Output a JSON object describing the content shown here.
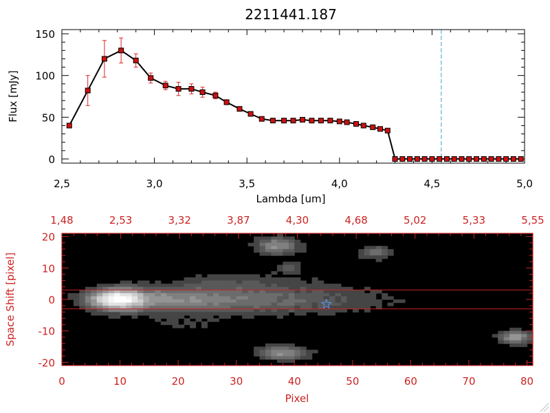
{
  "chart_data": [
    {
      "type": "line",
      "title": "2211441.187",
      "xlabel": "Lambda [um]",
      "ylabel": "Flux [mJy]",
      "xlim": [
        2.5,
        5.0
      ],
      "ylim": [
        -5,
        155
      ],
      "xticks": [
        "2.5",
        "3.0",
        "3.5",
        "4.0",
        "4.5",
        "5.0"
      ],
      "yticks": [
        "0",
        "50",
        "100",
        "150"
      ],
      "reference_line_x": 4.55,
      "x": [
        2.54,
        2.64,
        2.73,
        2.82,
        2.9,
        2.98,
        3.06,
        3.13,
        3.2,
        3.26,
        3.33,
        3.39,
        3.46,
        3.52,
        3.58,
        3.64,
        3.7,
        3.75,
        3.8,
        3.85,
        3.9,
        3.95,
        4.0,
        4.04,
        4.09,
        4.13,
        4.18,
        4.22,
        4.26,
        4.3,
        4.34,
        4.38,
        4.42,
        4.46,
        4.5,
        4.54,
        4.58,
        4.62,
        4.66,
        4.7,
        4.74,
        4.78,
        4.82,
        4.86,
        4.9,
        4.94,
        4.98
      ],
      "values": [
        40,
        82,
        120,
        130,
        118,
        97,
        88,
        84,
        84,
        80,
        76,
        68,
        60,
        54,
        48,
        46,
        46,
        46,
        47,
        46,
        46,
        46,
        45,
        44,
        42,
        40,
        38,
        36,
        34,
        0,
        0,
        0,
        0,
        0,
        0,
        0,
        0,
        0,
        0,
        0,
        0,
        0,
        0,
        0,
        0,
        0,
        0
      ],
      "errors": [
        2,
        18,
        22,
        15,
        8,
        6,
        5,
        8,
        6,
        6,
        4,
        3,
        2,
        2,
        2,
        2,
        2,
        2,
        2,
        2,
        2,
        2,
        2,
        2,
        2,
        2,
        2,
        2,
        2,
        0,
        0,
        0,
        0,
        0,
        0,
        0,
        0,
        0,
        0,
        0,
        0,
        0,
        0,
        0,
        0,
        0,
        0
      ]
    },
    {
      "type": "heatmap",
      "xlabel": "Pixel",
      "ylabel": "Space Shift [pixel]",
      "xlim": [
        0,
        81
      ],
      "ylim": [
        -21,
        21
      ],
      "xticks": [
        "0",
        "10",
        "20",
        "30",
        "40",
        "50",
        "60",
        "70",
        "80"
      ],
      "yticks": [
        "-20",
        "-10",
        "0",
        "10",
        "20"
      ],
      "top_axis_ticks": [
        "1.48",
        "2.53",
        "3.32",
        "3.87",
        "4.30",
        "4.68",
        "5.02",
        "5.33",
        "5.55"
      ],
      "extraction_band": [
        -3,
        3
      ],
      "marker": {
        "x": 45.5,
        "y": -1.5,
        "symbol": "star"
      },
      "sources": [
        {
          "x": 10,
          "y": 0,
          "sx": 4,
          "sy": 2.5,
          "amp": 1.0,
          "tail_to": 66
        },
        {
          "x": 37,
          "y": 17,
          "sx": 2.5,
          "sy": 2,
          "amp": 0.45
        },
        {
          "x": 54,
          "y": 15,
          "sx": 2,
          "sy": 1.5,
          "amp": 0.3
        },
        {
          "x": 39,
          "y": 10,
          "sx": 1.5,
          "sy": 1.2,
          "amp": 0.22
        },
        {
          "x": 38,
          "y": -17,
          "sx": 3,
          "sy": 1.6,
          "amp": 0.45
        },
        {
          "x": 78,
          "y": -12,
          "sx": 2,
          "sy": 1.5,
          "amp": 0.5
        },
        {
          "x": 30,
          "y": 6,
          "sx": 8,
          "sy": 2,
          "amp": 0.12
        },
        {
          "x": 20,
          "y": -8,
          "sx": 6,
          "sy": 2,
          "amp": 0.1
        }
      ]
    }
  ],
  "colors": {
    "axis_top": "#000000",
    "line": "#000000",
    "marker_fill": "#cc1111",
    "error_bar": "#dd2222",
    "ref_line": "#3aa0d8",
    "axis_bottom": "#cc2222",
    "star": "#5a8fe0"
  }
}
